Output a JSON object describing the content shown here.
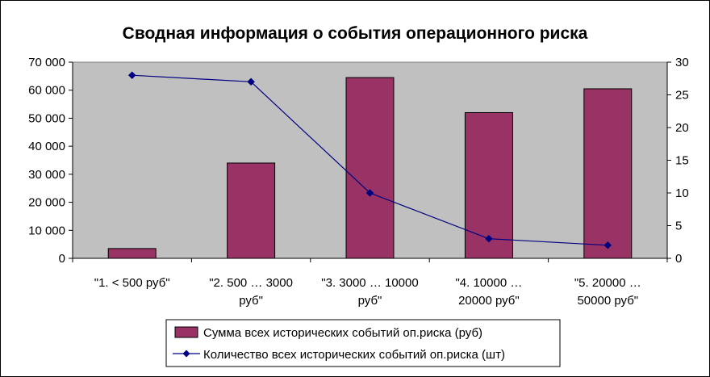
{
  "chart_data": {
    "type": "bar",
    "title": "Сводная информация о события операционного риска",
    "categories": [
      [
        "\"1. < 500 руб\""
      ],
      [
        "\"2. 500 … 3000",
        "руб\""
      ],
      [
        "\"3. 3000 … 10000",
        "руб\""
      ],
      [
        "\"4. 10000 …",
        "20000 руб\""
      ],
      [
        "\"5. 20000 …",
        "50000 руб\""
      ]
    ],
    "series": [
      {
        "name": "Сумма всех исторических событий оп.риска (руб)",
        "type": "bar",
        "axis": "left",
        "color": "#993366",
        "values": [
          3500,
          34000,
          64500,
          52000,
          60500
        ]
      },
      {
        "name": "Количество всех исторических событий оп.риска (шт)",
        "type": "line",
        "axis": "right",
        "color": "#000080",
        "values": [
          28,
          27,
          10,
          3,
          2
        ]
      }
    ],
    "y_left": {
      "lim": [
        0,
        70000
      ],
      "ticks": [
        0,
        10000,
        20000,
        30000,
        40000,
        50000,
        60000,
        70000
      ],
      "tick_labels": [
        "0",
        "10 000",
        "20 000",
        "30 000",
        "40 000",
        "50 000",
        "60 000",
        "70 000"
      ]
    },
    "y_right": {
      "lim": [
        0,
        30
      ],
      "ticks": [
        0,
        5,
        10,
        15,
        20,
        25,
        30
      ],
      "tick_labels": [
        "0",
        "5",
        "10",
        "15",
        "20",
        "25",
        "30"
      ]
    },
    "plot_background": "#c0c0c0",
    "grid": false,
    "legend_position": "bottom"
  }
}
